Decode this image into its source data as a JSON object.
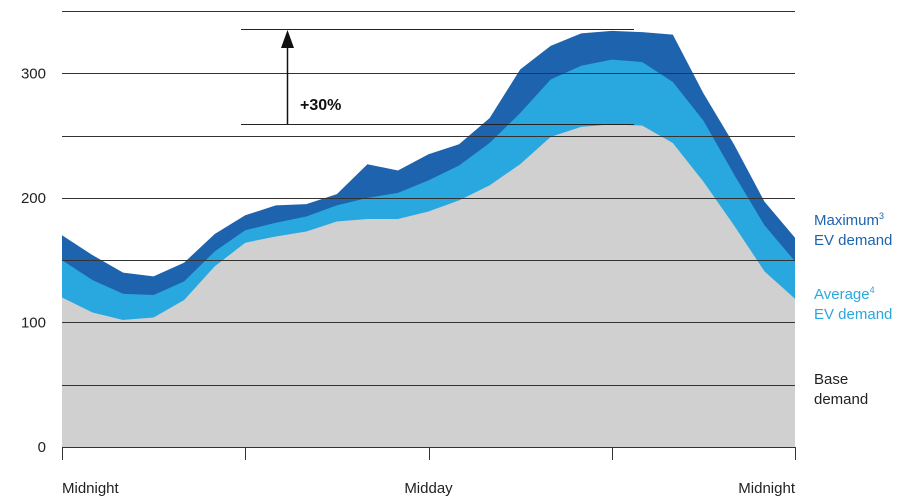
{
  "chart_data": {
    "type": "area",
    "x_tick_labels": [
      "Midnight",
      "Midday",
      "Midnight"
    ],
    "y_ticks": [
      0,
      100,
      200,
      300
    ],
    "ylim": [
      0,
      350
    ],
    "grid": true,
    "legend_position": "right",
    "x": [
      0,
      1,
      2,
      3,
      4,
      5,
      6,
      7,
      8,
      9,
      10,
      11,
      12,
      13,
      14,
      15,
      16,
      17,
      18,
      19,
      20,
      21,
      22,
      23,
      24
    ],
    "series": [
      {
        "name_line1": "Base",
        "name_line2": "demand",
        "values": [
          120,
          108,
          102,
          104,
          118,
          145,
          164,
          169,
          173,
          181,
          183,
          183,
          189,
          198,
          210,
          227,
          249,
          257,
          259,
          258,
          244,
          213,
          178,
          141,
          119
        ]
      },
      {
        "name_line1": "Average",
        "name_sup": "4",
        "name_line2": "EV demand",
        "values": [
          150,
          134,
          123,
          122,
          133,
          157,
          174,
          180,
          185,
          194,
          200,
          204,
          214,
          226,
          244,
          268,
          295,
          306,
          311,
          309,
          293,
          262,
          219,
          178,
          149
        ]
      },
      {
        "name_line1": "Maximum",
        "name_sup": "3",
        "name_line2": "EV demand",
        "values": [
          170,
          154,
          140,
          137,
          148,
          171,
          186,
          194,
          195,
          203,
          227,
          222,
          235,
          243,
          264,
          303,
          322,
          332,
          334,
          333,
          331,
          284,
          243,
          197,
          168
        ]
      }
    ],
    "annotation": "+30%",
    "colors": {
      "base": "#d0d0d0",
      "average": "#29a8df",
      "maximum": "#1e63ae",
      "grid": "#333333",
      "average_text": "#29a8df",
      "maximum_text": "#1e63ae",
      "base_text": "#222222"
    }
  }
}
